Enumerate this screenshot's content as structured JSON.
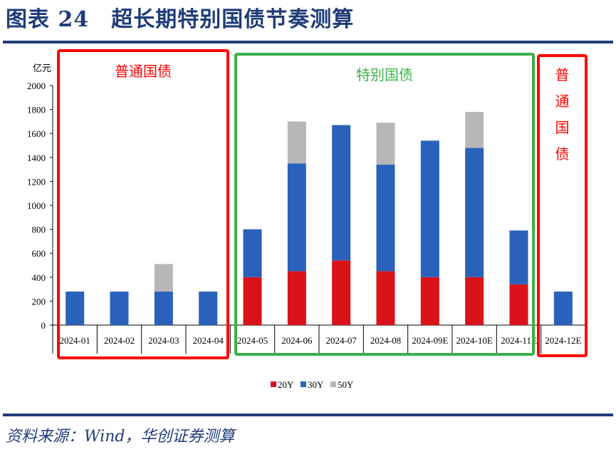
{
  "header": {
    "title": "图表 24　超长期特别国债节奏测算"
  },
  "footer": {
    "source": "资料来源：Wind，华创证券测算"
  },
  "annotations": [
    {
      "label": "普通国债",
      "color": "#ff0000"
    },
    {
      "label": "特别国债",
      "color": "#3cb04a"
    },
    {
      "label": "普通国债",
      "color": "#ff0000"
    }
  ],
  "chart_data": {
    "type": "bar",
    "stacked": true,
    "ylabel": "亿元",
    "ylim": [
      0,
      2000
    ],
    "yticks": [
      0,
      200,
      400,
      600,
      800,
      1000,
      1200,
      1400,
      1600,
      1800,
      2000
    ],
    "categories": [
      "2024-01",
      "2024-02",
      "2024-03",
      "2024-04",
      "2024-05",
      "2024-06",
      "2024-07",
      "2024-08",
      "2024-09E",
      "2024-10E",
      "2024-11E",
      "2024-12E"
    ],
    "series": [
      {
        "name": "20Y",
        "color": "#da121a",
        "values": [
          0,
          0,
          0,
          0,
          400,
          450,
          540,
          450,
          400,
          400,
          340,
          0
        ]
      },
      {
        "name": "30Y",
        "color": "#2a62bb",
        "values": [
          280,
          280,
          280,
          280,
          400,
          900,
          1130,
          890,
          1140,
          1080,
          450,
          280
        ]
      },
      {
        "name": "50Y",
        "color": "#b7b7b7",
        "values": [
          0,
          0,
          230,
          0,
          0,
          350,
          0,
          350,
          0,
          300,
          0,
          0
        ]
      }
    ],
    "legend": "bottom",
    "grid": false
  }
}
